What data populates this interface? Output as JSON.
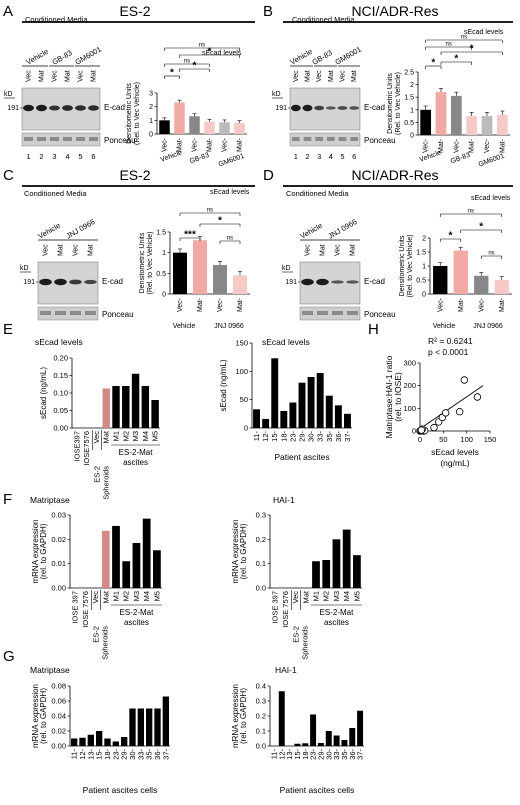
{
  "panels": {
    "A": {
      "letter": "A",
      "title": "ES-2"
    },
    "B": {
      "letter": "B",
      "title": "NCI/ADR-Res"
    },
    "C": {
      "letter": "C",
      "title": "ES-2"
    },
    "D": {
      "letter": "D",
      "title": "NCI/ADR-Res"
    },
    "E": {
      "letter": "E"
    },
    "F": {
      "letter": "F"
    },
    "G": {
      "letter": "G"
    },
    "H": {
      "letter": "H"
    }
  },
  "blot": {
    "conditioned_media": "Conditioned Media",
    "kd": "kD",
    "mw": "191",
    "ecad": "E-cad",
    "ponceau": "Ponceau",
    "vec": "Vec",
    "mat": "Mat",
    "vehicle": "Vehicle",
    "gb83": "GB-83",
    "gm6001": "GM6001",
    "jnj": "JNJ 0966",
    "lanes": [
      "1",
      "2",
      "3",
      "4",
      "5",
      "6"
    ]
  },
  "labels": {
    "secad_levels": "sEcad levels",
    "densito_1": "Densitometric Units",
    "densito_2": "(Rel. to Vec Vehicle)",
    "secad_ngml": "sEcad (ng/mL)",
    "mrna_1": "mRNA expression",
    "mrna_2": "(rel. to GAPDH)",
    "es2_mat_ascites_1": "ES-2-Mat",
    "es2_mat_ascites_2": "ascites",
    "patient_ascites": "Patient ascites",
    "patient_ascites_cells": "Patient ascites cells",
    "matriptase": "Matriptase",
    "hai1": "HAI-1",
    "h_ylabel_1": "Matriptase:HAI-1 ratio",
    "h_ylabel_2": "(rel. to IOSE)",
    "h_xlabel_1": "sEcad levels",
    "h_xlabel_2": "(ng/mL)",
    "h_r2": "R² = 0.6241",
    "h_p": "p < 0.0001",
    "sig_ns": "ns",
    "sig_1": "*",
    "sig_3": "***",
    "vehicle": "Vehicle"
  },
  "colors": {
    "black": "#000000",
    "pink": "#f1a9a4",
    "gray": "#888888",
    "light_pink": "#f7c9c6",
    "light_gray": "#bbbbbb",
    "highlight": "#d48a84"
  },
  "chart_data": [
    {
      "id": "A",
      "type": "bar",
      "ylim": [
        0,
        3
      ],
      "yticks": [
        0,
        1,
        2,
        3
      ],
      "categories": [
        "Vec-",
        "Mat-",
        "Vec-",
        "Mat-",
        "Vec-",
        "Mat-"
      ],
      "groups": [
        "Vehicle",
        "GB-83",
        "GM6001"
      ],
      "values": [
        1.0,
        2.3,
        1.3,
        0.9,
        0.85,
        0.8
      ]
    },
    {
      "id": "B",
      "type": "bar",
      "ylim": [
        0,
        2.5
      ],
      "yticks": [
        0,
        0.5,
        1,
        1.5,
        2,
        2.5
      ],
      "categories": [
        "Vec-",
        "Mat-",
        "Vec-",
        "Mat-",
        "Vec-",
        "Mat-"
      ],
      "groups": [
        "Vehicle",
        "GB-83",
        "GM6001"
      ],
      "values": [
        1.0,
        1.7,
        1.55,
        0.75,
        0.75,
        0.8
      ]
    },
    {
      "id": "C",
      "type": "bar",
      "ylim": [
        0,
        1.5
      ],
      "yticks": [
        0,
        0.5,
        1,
        1.5
      ],
      "categories": [
        "Vec-",
        "Mat-",
        "Vec-",
        "Mat-"
      ],
      "groups": [
        "Vehicle",
        "JNJ 0966"
      ],
      "values": [
        1.0,
        1.3,
        0.7,
        0.45
      ]
    },
    {
      "id": "D",
      "type": "bar",
      "ylim": [
        0,
        2
      ],
      "yticks": [
        0,
        0.5,
        1,
        1.5,
        2
      ],
      "categories": [
        "Vec-",
        "Mat-",
        "Vec-",
        "Mat-"
      ],
      "groups": [
        "Vehicle",
        "JNJ 0966"
      ],
      "values": [
        1.0,
        1.55,
        0.65,
        0.5
      ]
    },
    {
      "id": "E1",
      "type": "bar",
      "title": "sEcad levels",
      "ylabel": "sEcad (ng/mL)",
      "ylim": [
        0,
        0.2
      ],
      "yticks": [
        "0.00",
        "0.05",
        "0.10",
        "0.15",
        "0.20"
      ],
      "categories": [
        "IOSE397",
        "IOSE7576",
        "Vec",
        "Mat",
        "M1",
        "M2",
        "M3",
        "M4",
        "M5"
      ],
      "values": [
        0,
        0,
        0,
        0.113,
        0.12,
        0.12,
        0.155,
        0.12,
        0.08
      ]
    },
    {
      "id": "E2",
      "type": "bar",
      "title": "sEcad levels",
      "ylabel": "sEcad (ng/mL)",
      "xlabel": "Patient ascites",
      "ylim": [
        0,
        150
      ],
      "yticks": [
        0,
        50,
        100,
        150
      ],
      "categories": [
        "11",
        "12",
        "15",
        "18",
        "23",
        "29",
        "30",
        "33",
        "35",
        "36",
        "37"
      ],
      "values": [
        33,
        16,
        123,
        30,
        45,
        80,
        90,
        97,
        57,
        40,
        25
      ]
    },
    {
      "id": "F1",
      "type": "bar",
      "title": "Matriptase",
      "ylabel": "mRNA expression (rel. to GAPDH)",
      "ylim": [
        0,
        0.03
      ],
      "yticks": [
        "0.00",
        "0.01",
        "0.02",
        "0.03"
      ],
      "categories": [
        "IOSE 397",
        "IOSE 7576",
        "Vec",
        "Mat",
        "M1",
        "M2",
        "M3",
        "M4",
        "M5"
      ],
      "values": [
        0,
        0,
        0,
        0.0235,
        0.0255,
        0.011,
        0.0185,
        0.0285,
        0.0155
      ]
    },
    {
      "id": "F2",
      "type": "bar",
      "title": "HAI-1",
      "ylabel": "mRNA expression (rel. to GAPDH)",
      "ylim": [
        0,
        0.3
      ],
      "yticks": [
        "0.0",
        "0.1",
        "0.2",
        "0.3"
      ],
      "categories": [
        "IOSE 397",
        "IOSE 7576",
        "Vec",
        "Mat",
        "M1",
        "M2",
        "M3",
        "M4",
        "M5"
      ],
      "values": [
        0,
        0,
        0,
        0,
        0.11,
        0.115,
        0.2,
        0.24,
        0.135
      ]
    },
    {
      "id": "G1",
      "type": "bar",
      "title": "Matriptase",
      "ylabel": "mRNA expression (rel. to GAPDH)",
      "xlabel": "Patient ascites cells",
      "ylim": [
        0,
        0.08
      ],
      "yticks": [
        "0.00",
        "0.02",
        "0.04",
        "0.06",
        "0.08"
      ],
      "categories": [
        "11",
        "12",
        "13",
        "15",
        "18",
        "23",
        "29",
        "30",
        "33",
        "35",
        "36",
        "37"
      ],
      "values": [
        0.01,
        0.011,
        0.015,
        0.02,
        0.01,
        0.006,
        0.012,
        0.05,
        0.05,
        0.05,
        0.05,
        0.066
      ]
    },
    {
      "id": "G2",
      "type": "bar",
      "title": "HAI-1",
      "ylabel": "mRNA expression (rel. to GAPDH)",
      "xlabel": "Patient ascites cells",
      "ylim": [
        0,
        0.4
      ],
      "yticks": [
        "0.0",
        "0.1",
        "0.2",
        "0.3",
        "0.4"
      ],
      "categories": [
        "11",
        "12",
        "13",
        "15",
        "18",
        "23",
        "29",
        "30",
        "33",
        "35",
        "36",
        "37"
      ],
      "values": [
        0,
        0.365,
        0,
        0.015,
        0.018,
        0.21,
        0.02,
        0.1,
        0.07,
        0.04,
        0.12,
        0.235
      ]
    },
    {
      "id": "H",
      "type": "scatter",
      "xlabel": "sEcad levels (ng/mL)",
      "ylabel": "Matriptase:HAI-1 ratio (rel. to IOSE)",
      "xlim": [
        0,
        150
      ],
      "ylim": [
        0,
        300
      ],
      "xticks": [
        0,
        50,
        100,
        150
      ],
      "yticks": [
        0,
        100,
        200,
        300
      ],
      "points": [
        [
          0,
          0
        ],
        [
          2,
          2
        ],
        [
          4,
          3
        ],
        [
          6,
          5
        ],
        [
          8,
          0
        ],
        [
          10,
          2
        ],
        [
          5,
          8
        ],
        [
          3,
          4
        ],
        [
          30,
          15
        ],
        [
          40,
          40
        ],
        [
          48,
          60
        ],
        [
          55,
          80
        ],
        [
          95,
          225
        ],
        [
          85,
          85
        ],
        [
          123,
          150
        ]
      ],
      "fit": [
        [
          0,
          10
        ],
        [
          135,
          200
        ]
      ]
    }
  ]
}
